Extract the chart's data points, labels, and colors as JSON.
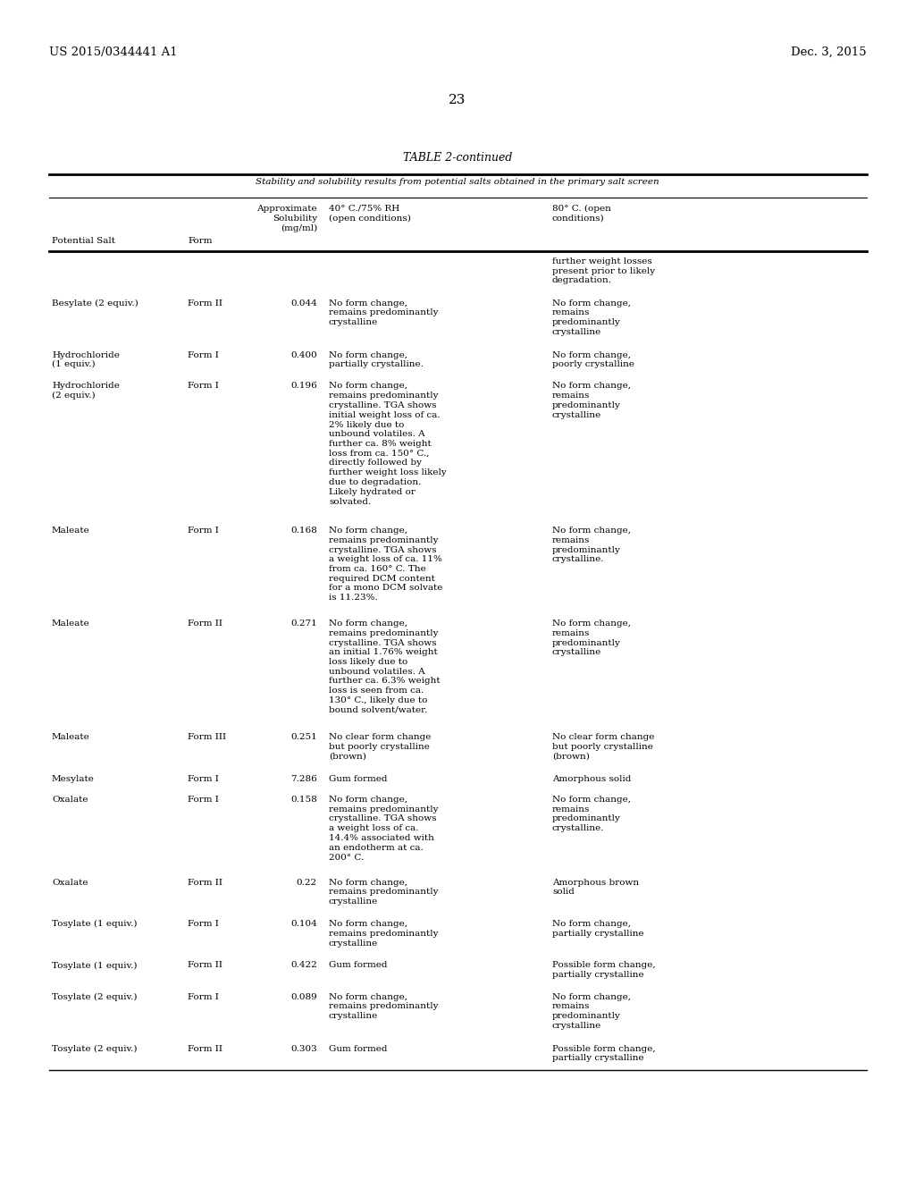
{
  "header_left": "US 2015/0344441 A1",
  "header_right": "Dec. 3, 2015",
  "page_number": "23",
  "table_title": "TABLE 2-continued",
  "table_subtitle": "Stability and solubility results from potential salts obtained in the primary salt screen",
  "col_headers_line1": [
    "",
    "",
    "Approximate",
    "40° C./75% RH",
    "80° C. (open"
  ],
  "col_headers_line2": [
    "",
    "",
    "Solubility",
    "(open conditions)",
    "conditions)"
  ],
  "col_headers_line3": [
    "Potential Salt",
    "Form",
    "(mg/ml)",
    "",
    ""
  ],
  "rows": [
    {
      "salt": "",
      "form": "",
      "solubility": "",
      "cond40": "",
      "cond80": "further weight losses\npresent prior to likely\ndegradation."
    },
    {
      "salt": "Besylate (2 equiv.)",
      "form": "Form II",
      "solubility": "0.044",
      "cond40": "No form change,\nremains predominantly\ncrystalline",
      "cond80": "No form change,\nremains\npredominantly\ncrystalline"
    },
    {
      "salt": "Hydrochloride\n(1 equiv.)",
      "form": "Form I",
      "solubility": "0.400",
      "cond40": "No form change,\npartially crystalline.",
      "cond80": "No form change,\npoorly crystalline"
    },
    {
      "salt": "Hydrochloride\n(2 equiv.)",
      "form": "Form I",
      "solubility": "0.196",
      "cond40": "No form change,\nremains predominantly\ncrystalline. TGA shows\ninitial weight loss of ca.\n2% likely due to\nunbound volatiles. A\nfurther ca. 8% weight\nloss from ca. 150° C.,\ndirectly followed by\nfurther weight loss likely\ndue to degradation.\nLikely hydrated or\nsolvated.",
      "cond80": "No form change,\nremains\npredominantly\ncrystalline"
    },
    {
      "salt": "Maleate",
      "form": "Form I",
      "solubility": "0.168",
      "cond40": "No form change,\nremains predominantly\ncrystalline. TGA shows\na weight loss of ca. 11%\nfrom ca. 160° C. The\nrequired DCM content\nfor a mono DCM solvate\nis 11.23%.",
      "cond80": "No form change,\nremains\npredominantly\ncrystalline."
    },
    {
      "salt": "Maleate",
      "form": "Form II",
      "solubility": "0.271",
      "cond40": "No form change,\nremains predominantly\ncrystalline. TGA shows\nan initial 1.76% weight\nloss likely due to\nunbound volatiles. A\nfurther ca. 6.3% weight\nloss is seen from ca.\n130° C., likely due to\nbound solvent/water.",
      "cond80": "No form change,\nremains\npredominantly\ncrystalline"
    },
    {
      "salt": "Maleate",
      "form": "Form III",
      "solubility": "0.251",
      "cond40": "No clear form change\nbut poorly crystalline\n(brown)",
      "cond80": "No clear form change\nbut poorly crystalline\n(brown)"
    },
    {
      "salt": "Mesylate",
      "form": "Form I",
      "solubility": "7.286",
      "cond40": "Gum formed",
      "cond80": "Amorphous solid"
    },
    {
      "salt": "Oxalate",
      "form": "Form I",
      "solubility": "0.158",
      "cond40": "No form change,\nremains predominantly\ncrystalline. TGA shows\na weight loss of ca.\n14.4% associated with\nan endotherm at ca.\n200° C.",
      "cond80": "No form change,\nremains\npredominantly\ncrystalline."
    },
    {
      "salt": "Oxalate",
      "form": "Form II",
      "solubility": "0.22",
      "cond40": "No form change,\nremains predominantly\ncrystalline",
      "cond80": "Amorphous brown\nsolid"
    },
    {
      "salt": "Tosylate (1 equiv.)",
      "form": "Form I",
      "solubility": "0.104",
      "cond40": "No form change,\nremains predominantly\ncrystalline",
      "cond80": "No form change,\npartially crystalline"
    },
    {
      "salt": "Tosylate (1 equiv.)",
      "form": "Form II",
      "solubility": "0.422",
      "cond40": "Gum formed",
      "cond80": "Possible form change,\npartially crystalline"
    },
    {
      "salt": "Tosylate (2 equiv.)",
      "form": "Form I",
      "solubility": "0.089",
      "cond40": "No form change,\nremains predominantly\ncrystalline",
      "cond80": "No form change,\nremains\npredominantly\ncrystalline"
    },
    {
      "salt": "Tosylate (2 equiv.)",
      "form": "Form II",
      "solubility": "0.303",
      "cond40": "Gum formed",
      "cond80": "Possible form change,\npartially crystalline"
    }
  ],
  "background_color": "#ffffff",
  "text_color": "#000000"
}
